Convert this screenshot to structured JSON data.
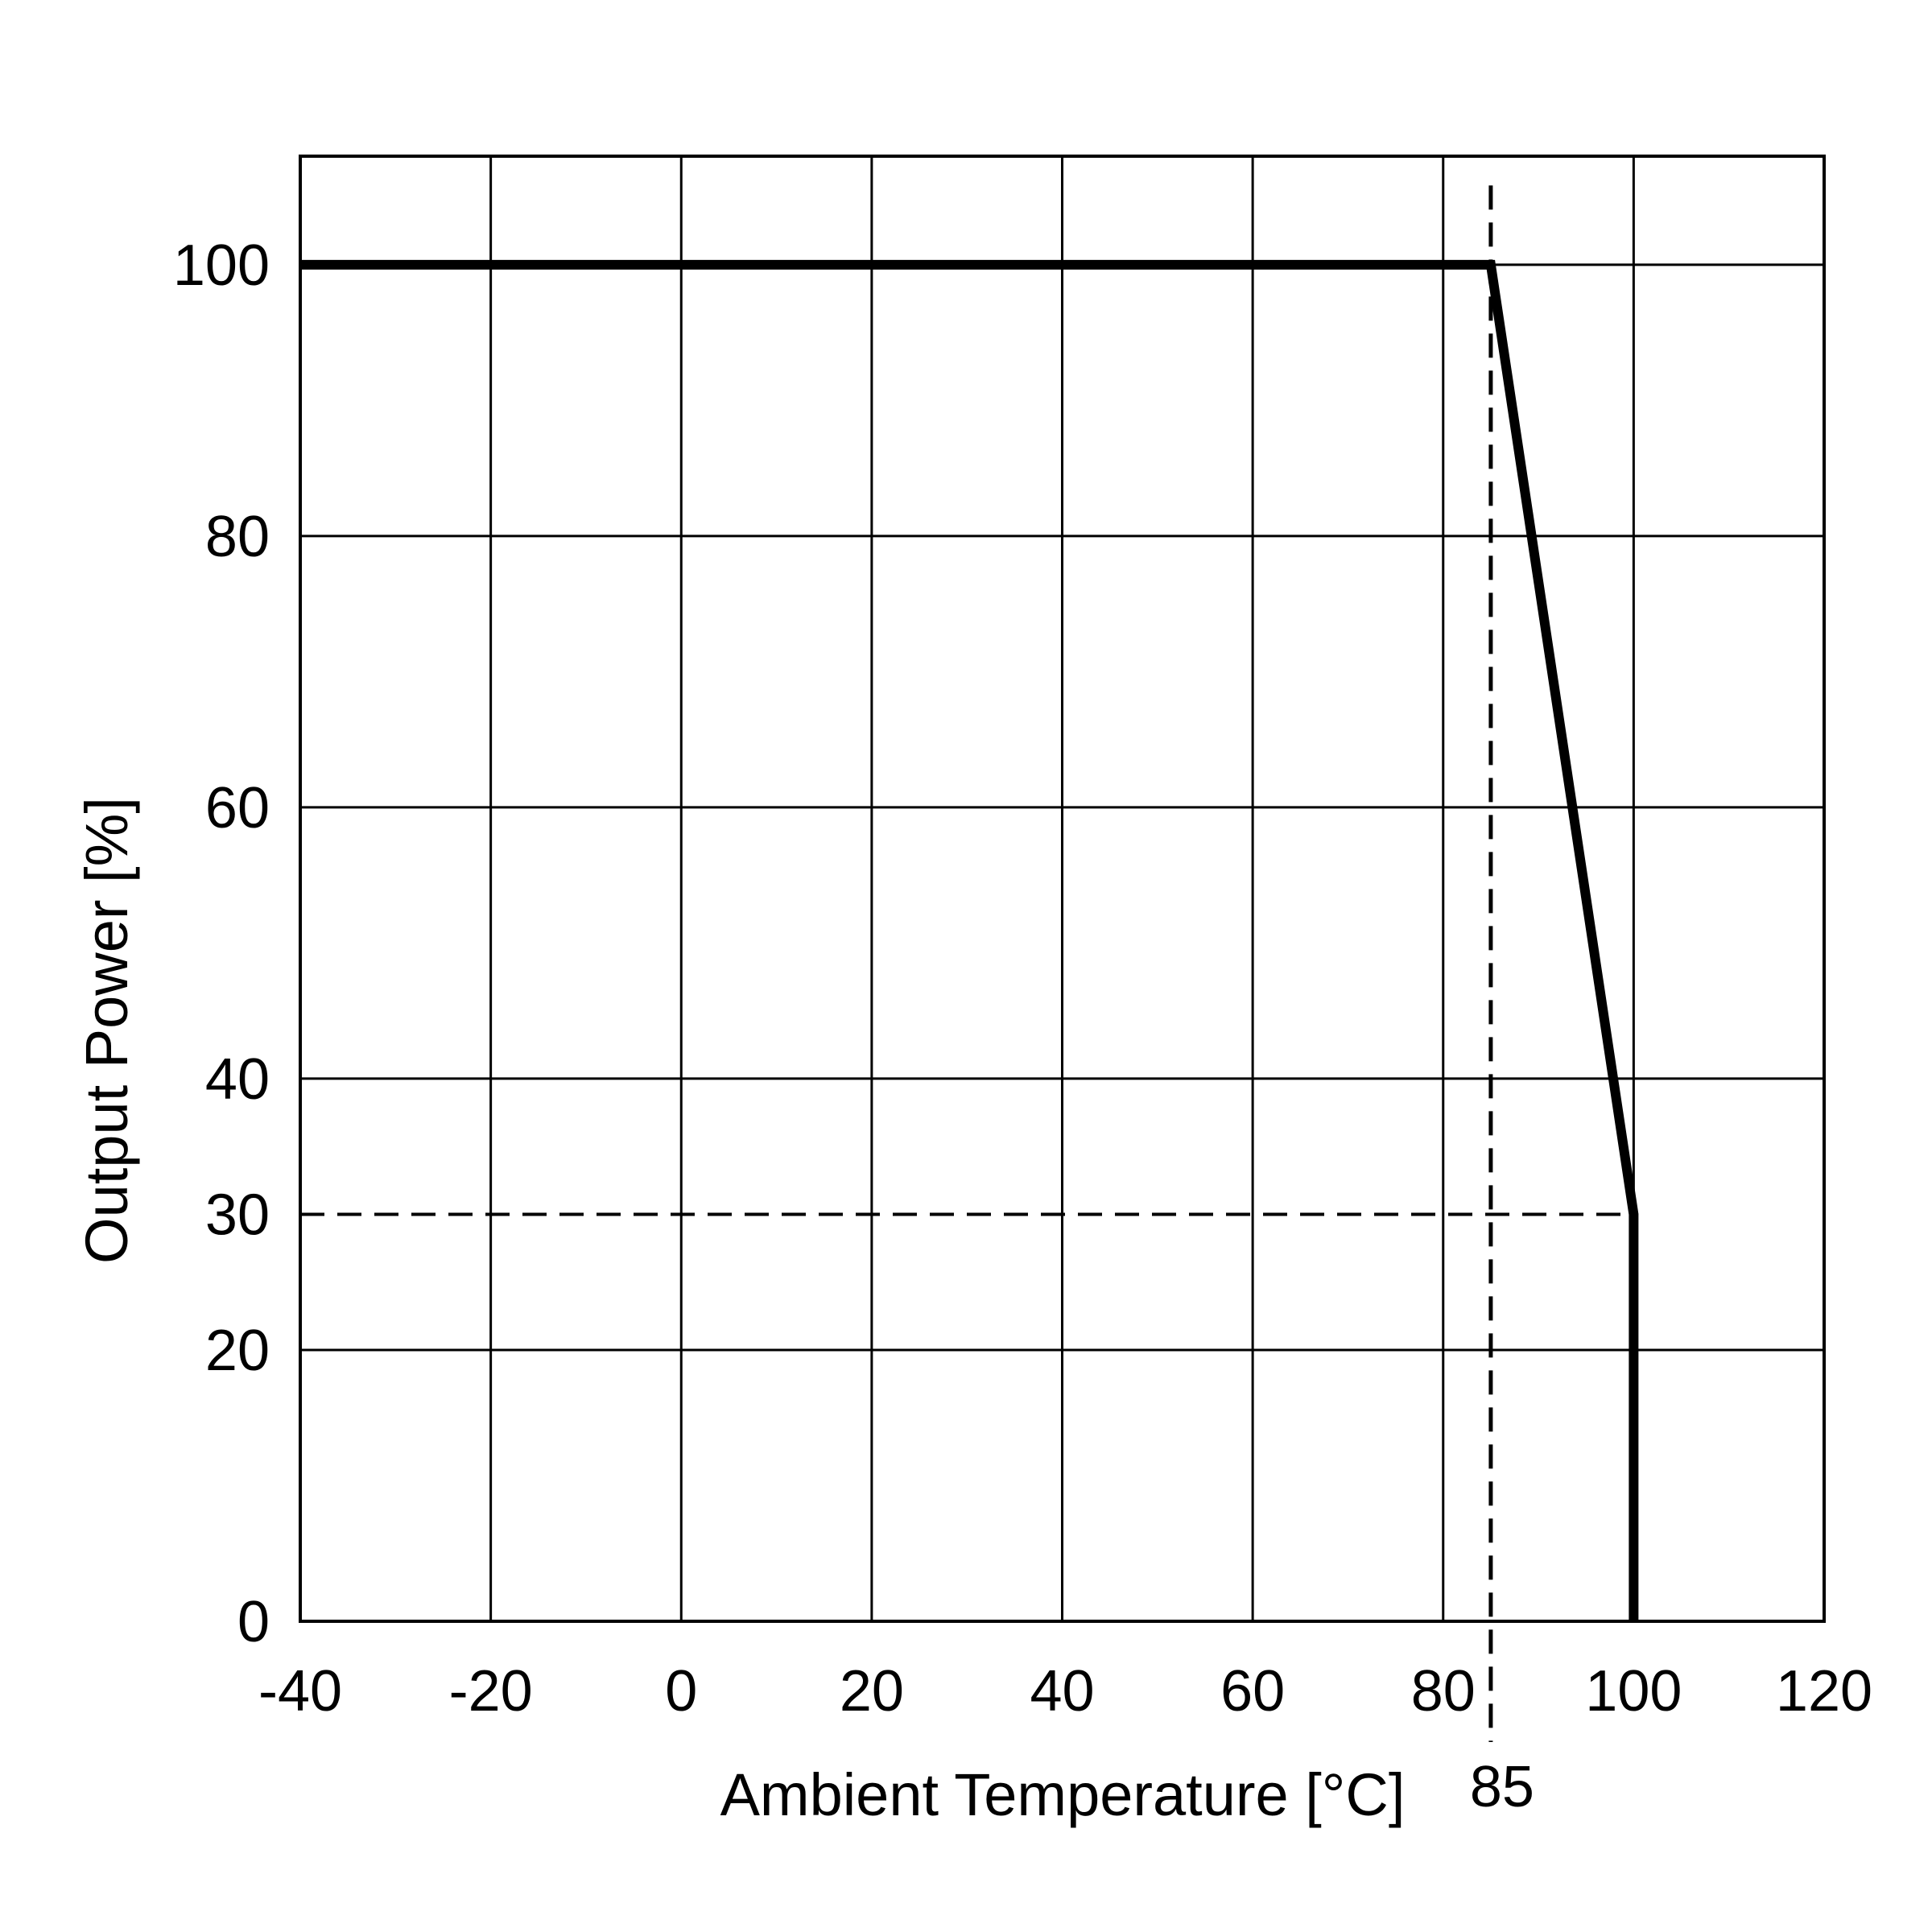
{
  "chart_data": {
    "type": "line",
    "title": "",
    "xlabel": "Ambient Temperature [°C]",
    "ylabel": "Output Power [%]",
    "xlim": [
      -40,
      120
    ],
    "ylim": [
      0,
      108
    ],
    "x_ticks": [
      -40,
      -20,
      0,
      20,
      40,
      60,
      80,
      100,
      120
    ],
    "y_ticks": [
      0,
      20,
      30,
      40,
      60,
      80,
      100
    ],
    "y_grid": [
      20,
      40,
      60,
      80,
      100
    ],
    "grid": true,
    "legend": "none",
    "series": [
      {
        "x": [
          -40,
          85,
          100,
          100
        ],
        "y": [
          100,
          100,
          30,
          0
        ],
        "color": "#000000"
      }
    ],
    "annotations": [
      {
        "type": "dashed-vertical",
        "x": 85,
        "label": "85"
      },
      {
        "type": "dashed-horizontal",
        "y": 30,
        "x_end": 100
      }
    ]
  }
}
